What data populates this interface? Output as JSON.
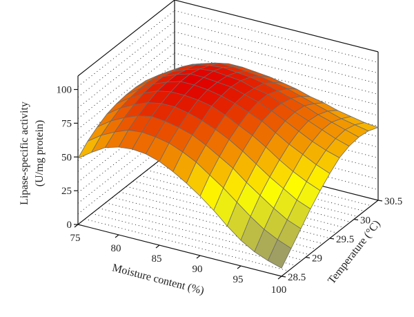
{
  "chart_data": {
    "type": "surface",
    "xlabel": "Moisture content (%)",
    "ylabel": "Temperature (°C)",
    "zlabel_line1": "Lipase-specific activity",
    "zlabel_line2": "(U/mg protein)",
    "x_ticks": [
      "75",
      "80",
      "85",
      "90",
      "95",
      "100"
    ],
    "y_ticks": [
      "28.5",
      "29",
      "29.5",
      "30",
      "30.5"
    ],
    "z_ticks": [
      "0",
      "25",
      "50",
      "75",
      "100"
    ],
    "xlim": [
      75,
      100
    ],
    "ylim": [
      28.5,
      30.5
    ],
    "zlim": [
      0,
      110
    ],
    "x_grid": [
      75,
      76.67,
      78.33,
      80,
      81.67,
      83.33,
      85,
      86.67,
      88.33,
      90,
      91.67,
      93.33,
      95,
      96.67,
      98.33,
      100
    ],
    "y_grid": [
      28.5,
      28.7,
      28.9,
      29.1,
      29.3,
      29.5,
      29.7,
      29.9,
      30.1,
      30.3,
      30.5
    ],
    "z_values": [
      [
        49,
        56,
        61,
        65,
        67,
        68,
        68,
        67,
        64,
        60,
        55
      ],
      [
        56,
        63,
        68,
        72,
        74,
        75,
        75,
        74,
        71,
        67,
        62
      ],
      [
        62,
        68,
        73,
        77,
        80,
        81,
        81,
        79,
        77,
        73,
        68
      ],
      [
        65,
        72,
        77,
        81,
        84,
        85,
        85,
        83,
        81,
        76,
        71
      ],
      [
        66,
        73,
        79,
        83,
        86,
        88,
        88,
        86,
        83,
        79,
        73
      ],
      [
        65,
        72,
        78,
        83,
        86,
        88,
        88,
        87,
        84,
        79,
        73
      ],
      [
        62,
        70,
        76,
        81,
        85,
        87,
        87,
        86,
        83,
        78,
        72
      ],
      [
        57,
        66,
        73,
        78,
        83,
        85,
        86,
        85,
        82,
        77,
        71
      ],
      [
        51,
        61,
        68,
        74,
        79,
        82,
        83,
        82,
        80,
        75,
        69
      ],
      [
        44,
        54,
        62,
        69,
        74,
        78,
        80,
        80,
        77,
        73,
        67
      ],
      [
        36,
        47,
        56,
        63,
        69,
        74,
        76,
        76,
        74,
        70,
        64
      ],
      [
        27,
        39,
        48,
        56,
        63,
        68,
        71,
        72,
        71,
        67,
        62
      ],
      [
        19,
        31,
        41,
        49,
        56,
        62,
        66,
        68,
        67,
        64,
        59
      ],
      [
        13,
        24,
        34,
        43,
        50,
        57,
        61,
        64,
        64,
        61,
        57
      ],
      [
        9,
        19,
        28,
        37,
        45,
        52,
        57,
        60,
        61,
        59,
        55
      ],
      [
        6,
        15,
        24,
        33,
        41,
        48,
        54,
        57,
        58,
        57,
        54
      ]
    ],
    "colors": {
      "low": "#8c8c78",
      "mid": "#ffff00",
      "high": "#e00000"
    }
  }
}
